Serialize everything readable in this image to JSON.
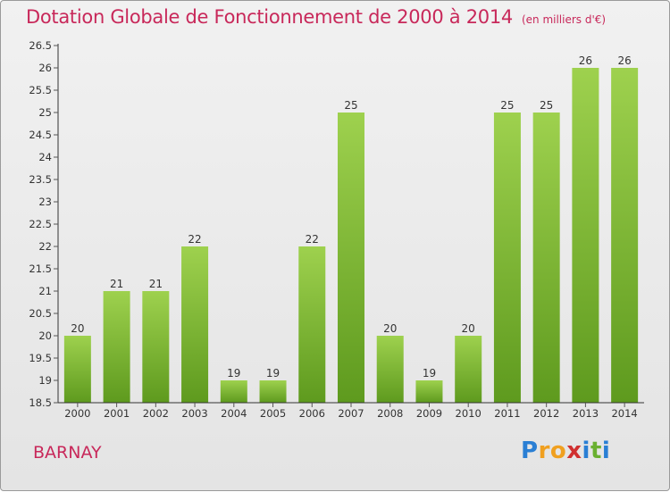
{
  "title": "Dotation Globale de Fonctionnement de 2000 à 2014",
  "unit": "(en milliers d'€)",
  "commune": "BARNAY",
  "logo": {
    "letters": [
      "P",
      "r",
      "o",
      "x",
      "i",
      "t",
      "i"
    ],
    "colors": [
      "#2a7fd4",
      "#f0a020",
      "#f0a020",
      "#d03030",
      "#2a7fd4",
      "#6ab030",
      "#2a7fd4"
    ]
  },
  "colors": {
    "title": "#c8285a",
    "bar_top": "#9ed14e",
    "bar_bottom": "#5e9a1e",
    "axis": "#333333",
    "grid_tick": "#555555"
  },
  "chart_data": {
    "type": "bar",
    "title": "Dotation Globale de Fonctionnement de 2000 à 2014",
    "subtitle": "(en milliers d'€)",
    "categories": [
      "2000",
      "2001",
      "2002",
      "2003",
      "2004",
      "2005",
      "2006",
      "2007",
      "2008",
      "2009",
      "2010",
      "2011",
      "2012",
      "2013",
      "2014"
    ],
    "values": [
      20,
      21,
      21,
      22,
      19,
      19,
      22,
      25,
      20,
      19,
      20,
      25,
      25,
      26,
      26
    ],
    "data_labels": [
      "20",
      "21",
      "21",
      "22",
      "19",
      "19",
      "22",
      "25",
      "20",
      "19",
      "20",
      "25",
      "25",
      "26",
      "26"
    ],
    "ylim": [
      18.5,
      26.5
    ],
    "yticks": [
      "18.5",
      "19",
      "19.5",
      "20",
      "20.5",
      "21",
      "21.5",
      "22",
      "22.5",
      "23",
      "23.5",
      "24",
      "24.5",
      "25",
      "25.5",
      "26",
      "26.5"
    ],
    "xlabel": "",
    "ylabel": "",
    "grid": false,
    "legend": "none"
  }
}
